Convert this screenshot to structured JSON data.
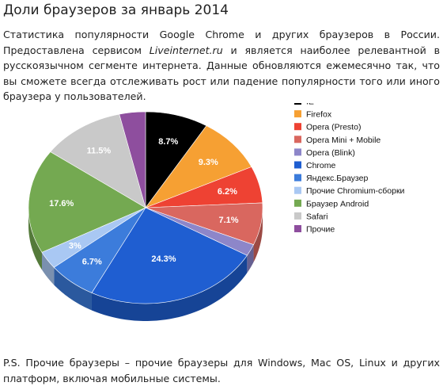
{
  "article": {
    "title": "Доли браузеров за январь 2014",
    "intro_part1": "Статистика популярности Google Chrome и других браузеров в России. Предоставлена сервисом ",
    "intro_link": "Liveinternet.ru",
    "intro_part2": " и является наиболее релевантной в русскоязычном сегменте интернета. Данные обновляются ежемесячно так, что вы сможете всегда отслеживать рост или падение популярности того или иного браузера у пользователей.",
    "footer": "P.S. Прочие браузеры – прочие браузеры для Windows, Mac OS, Linux и других платформ, включая мобильные системы."
  },
  "chart_data": {
    "type": "pie",
    "title": "",
    "legend_position": "right",
    "slices": [
      {
        "name": "IE",
        "value": 8.7,
        "label": "8.7%",
        "color": "#000000"
      },
      {
        "name": "Firefox",
        "value": 9.3,
        "label": "9.3%",
        "color": "#f6a033"
      },
      {
        "name": "Opera (Presto)",
        "value": 6.2,
        "label": "6.2%",
        "color": "#ee4233"
      },
      {
        "name": "Opera Mini + Mobile",
        "value": 7.1,
        "label": "7.1%",
        "color": "#d9675f"
      },
      {
        "name": "Opera (Blink)",
        "value": 2.0,
        "label": "",
        "color": "#8d86c9"
      },
      {
        "name": "Chrome",
        "value": 24.3,
        "label": "24.3%",
        "color": "#1f5ed1"
      },
      {
        "name": "Яндекс.Браузер",
        "value": 6.7,
        "label": "6.7%",
        "color": "#3c7cdb"
      },
      {
        "name": "Прочие Chromium-сборки",
        "value": 3.0,
        "label": "3%",
        "color": "#a9c8f3"
      },
      {
        "name": "Браузер Android",
        "value": 17.6,
        "label": "17.6%",
        "color": "#74a951"
      },
      {
        "name": "Safari",
        "value": 11.5,
        "label": "11.5%",
        "color": "#c9c9c9"
      },
      {
        "name": "Прочие",
        "value": 3.6,
        "label": "",
        "color": "#8e4e9e"
      }
    ]
  }
}
